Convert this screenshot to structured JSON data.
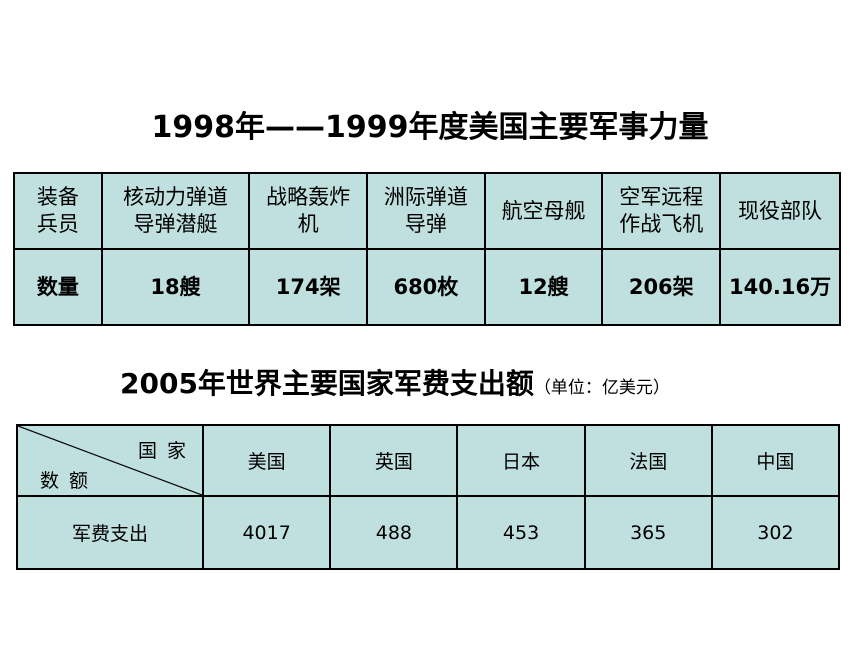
{
  "slide": {
    "title1": "1998年——1999年度美国主要军事力量",
    "table1": {
      "headers": [
        "装备\n兵员",
        "核动力弹道\n导弹潜艇",
        "战略轰炸\n机",
        "洲际弹道\n导弹",
        "航空母舰",
        "空军远程\n作战飞机",
        "现役部队"
      ],
      "row": [
        "数量",
        "18艘",
        "174架",
        "680枚",
        "12艘",
        "206架",
        "140.16万"
      ]
    },
    "title2": "2005年世界主要国家军费支出额",
    "title2_unit": "（单位：亿美元）",
    "table2": {
      "corner_top": "国 家",
      "corner_bottom": "数 额",
      "countries": [
        "美国",
        "英国",
        "日本",
        "法国",
        "中国"
      ],
      "row_label": "军费支出",
      "values": [
        "4017",
        "488",
        "453",
        "365",
        "302"
      ]
    }
  }
}
